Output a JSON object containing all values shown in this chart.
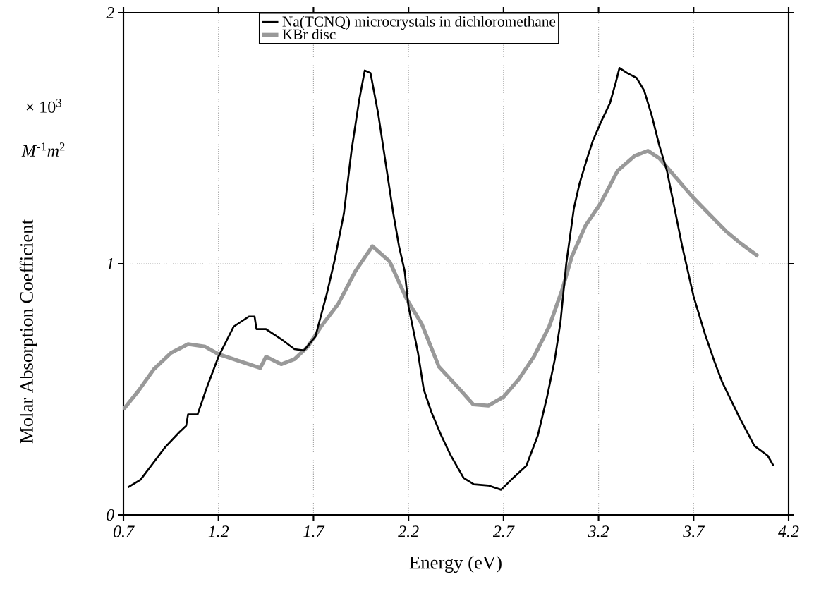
{
  "chart_data": {
    "type": "line",
    "xlabel": "Energy (eV)",
    "ylabel": "Molar Absorption Coefficient",
    "annotations": [
      "× 10$^{3}$",
      "*M*$^{-1}$*m*$^{2}$"
    ],
    "xlim": [
      0.7,
      4.2
    ],
    "xticks": [
      0.7,
      1.2,
      1.7,
      2.2,
      2.7,
      3.2,
      3.7,
      4.2
    ],
    "ylim": [
      0,
      2
    ],
    "yticks": [
      0,
      1,
      2
    ],
    "grid": true,
    "legend": "top",
    "marker": "none",
    "line_style": "solid",
    "series": [
      {
        "name": "Na(TCNQ) microcrystals in dichloromethane",
        "color": "#000000",
        "x": [
          0.724,
          0.79,
          0.85,
          0.92,
          0.995,
          1.03,
          1.04,
          1.09,
          1.14,
          1.2,
          1.24,
          1.28,
          1.36,
          1.39,
          1.4,
          1.45,
          1.53,
          1.6,
          1.65,
          1.71,
          1.77,
          1.81,
          1.86,
          1.9,
          1.94,
          1.97,
          2.0,
          2.04,
          2.08,
          2.12,
          2.15,
          2.18,
          2.2,
          2.25,
          2.28,
          2.32,
          2.37,
          2.42,
          2.49,
          2.544,
          2.62,
          2.687,
          2.75,
          2.82,
          2.88,
          2.93,
          2.97,
          3.0,
          3.03,
          3.07,
          3.1,
          3.14,
          3.17,
          3.21,
          3.26,
          3.29,
          3.31,
          3.35,
          3.4,
          3.44,
          3.48,
          3.52,
          3.56,
          3.6,
          3.64,
          3.7,
          3.76,
          3.81,
          3.85,
          3.94,
          4.02,
          4.09,
          4.12
        ],
        "values": [
          0.11,
          0.14,
          0.2,
          0.27,
          0.33,
          0.355,
          0.4,
          0.4,
          0.51,
          0.63,
          0.69,
          0.75,
          0.79,
          0.79,
          0.74,
          0.74,
          0.7,
          0.66,
          0.655,
          0.71,
          0.88,
          1.01,
          1.2,
          1.45,
          1.65,
          1.77,
          1.76,
          1.6,
          1.4,
          1.2,
          1.07,
          0.97,
          0.83,
          0.645,
          0.5,
          0.41,
          0.32,
          0.24,
          0.147,
          0.122,
          0.117,
          0.1,
          0.147,
          0.196,
          0.315,
          0.473,
          0.62,
          0.77,
          1.0,
          1.22,
          1.32,
          1.42,
          1.49,
          1.56,
          1.64,
          1.72,
          1.78,
          1.76,
          1.74,
          1.69,
          1.59,
          1.47,
          1.37,
          1.22,
          1.07,
          0.87,
          0.72,
          0.61,
          0.53,
          0.39,
          0.275,
          0.236,
          0.196
        ]
      },
      {
        "name": "KBr disc",
        "color": "#999999",
        "x": [
          0.7,
          0.78,
          0.86,
          0.95,
          1.04,
          1.13,
          1.2,
          1.28,
          1.36,
          1.42,
          1.45,
          1.53,
          1.6,
          1.67,
          1.74,
          1.83,
          1.92,
          2.01,
          2.1,
          2.19,
          2.27,
          2.36,
          2.47,
          2.54,
          2.62,
          2.7,
          2.78,
          2.86,
          2.94,
          3.01,
          3.06,
          3.13,
          3.21,
          3.3,
          3.39,
          3.46,
          3.52,
          3.6,
          3.69,
          3.78,
          3.87,
          3.95,
          4.04
        ],
        "values": [
          0.42,
          0.495,
          0.58,
          0.645,
          0.68,
          0.67,
          0.64,
          0.62,
          0.6,
          0.585,
          0.63,
          0.6,
          0.62,
          0.67,
          0.75,
          0.84,
          0.97,
          1.07,
          1.01,
          0.86,
          0.76,
          0.59,
          0.5,
          0.44,
          0.435,
          0.47,
          0.54,
          0.63,
          0.75,
          0.9,
          1.03,
          1.15,
          1.24,
          1.37,
          1.43,
          1.45,
          1.42,
          1.35,
          1.27,
          1.2,
          1.13,
          1.08,
          1.03
        ]
      }
    ]
  }
}
